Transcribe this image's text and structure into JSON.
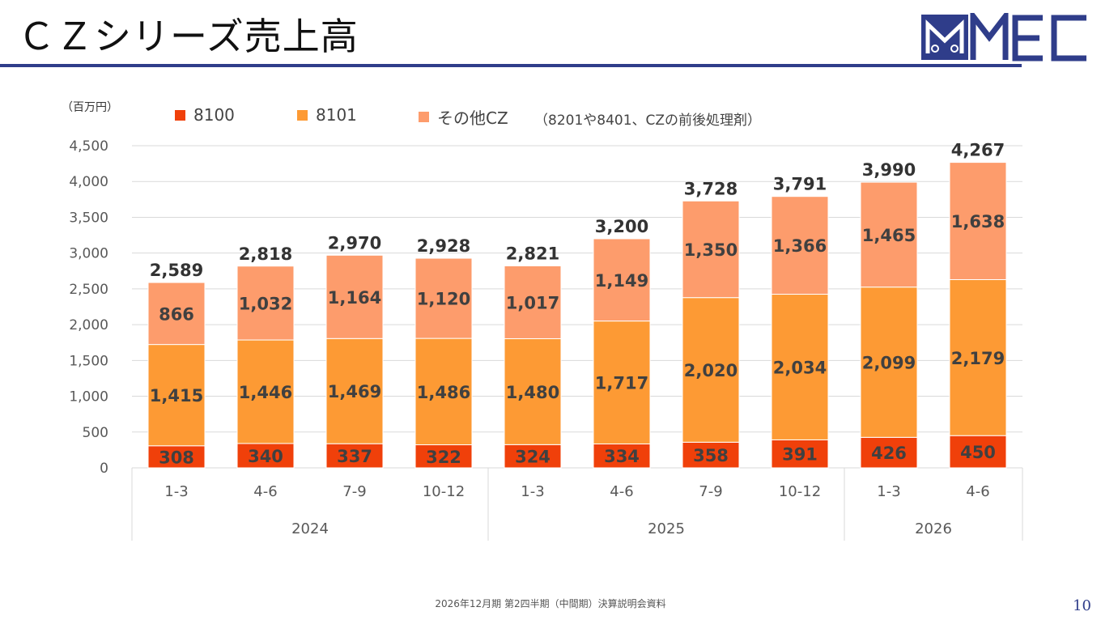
{
  "header": {
    "title": "ＣＺシリーズ売上高",
    "logo_text": "MMEC"
  },
  "colors": {
    "accent": "#2f3d8a",
    "s8100": "#f0400a",
    "s8101": "#fd9a34",
    "other": "#fd9c6c"
  },
  "footer": {
    "text": "2026年12月期 第2四半期（中間期）決算説明会資料",
    "page": "10"
  },
  "chart_data": {
    "type": "bar",
    "stacked": true,
    "unit_label": "（百万円）",
    "legend_note": "（8201や8401、CZの前後処理剤）",
    "legend_position": "top",
    "grid": true,
    "ylim": [
      0,
      4500
    ],
    "yticks": [
      "0",
      "500",
      "1,000",
      "1,500",
      "2,000",
      "2,500",
      "3,000",
      "3,500",
      "4,000",
      "4,500"
    ],
    "categories": [
      "1-3",
      "4-6",
      "7-9",
      "10-12",
      "1-3",
      "4-6",
      "7-9",
      "10-12",
      "1-3",
      "4-6"
    ],
    "groups": [
      {
        "label": "2024",
        "count": 4
      },
      {
        "label": "2025",
        "count": 4
      },
      {
        "label": "2026",
        "count": 2
      }
    ],
    "series": [
      {
        "name": "8100",
        "values": [
          308,
          340,
          337,
          322,
          324,
          334,
          358,
          391,
          426,
          450
        ],
        "labels": [
          "308",
          "340",
          "337",
          "322",
          "324",
          "334",
          "358",
          "391",
          "426",
          "450"
        ]
      },
      {
        "name": "8101",
        "values": [
          1415,
          1446,
          1469,
          1486,
          1480,
          1717,
          2020,
          2034,
          2099,
          2179
        ],
        "labels": [
          "1,415",
          "1,446",
          "1,469",
          "1,486",
          "1,480",
          "1,717",
          "2,020",
          "2,034",
          "2,099",
          "2,179"
        ]
      },
      {
        "name": "その他CZ",
        "values": [
          866,
          1032,
          1164,
          1120,
          1017,
          1149,
          1350,
          1366,
          1465,
          1638
        ],
        "labels": [
          "866",
          "1,032",
          "1,164",
          "1,120",
          "1,017",
          "1,149",
          "1,350",
          "1,366",
          "1,465",
          "1,638"
        ]
      }
    ],
    "totals": [
      2589,
      2818,
      2970,
      2928,
      2821,
      3200,
      3728,
      3791,
      3990,
      4267
    ],
    "total_labels": [
      "2,589",
      "2,818",
      "2,970",
      "2,928",
      "2,821",
      "3,200",
      "3,728",
      "3,791",
      "3,990",
      "4,267"
    ]
  }
}
